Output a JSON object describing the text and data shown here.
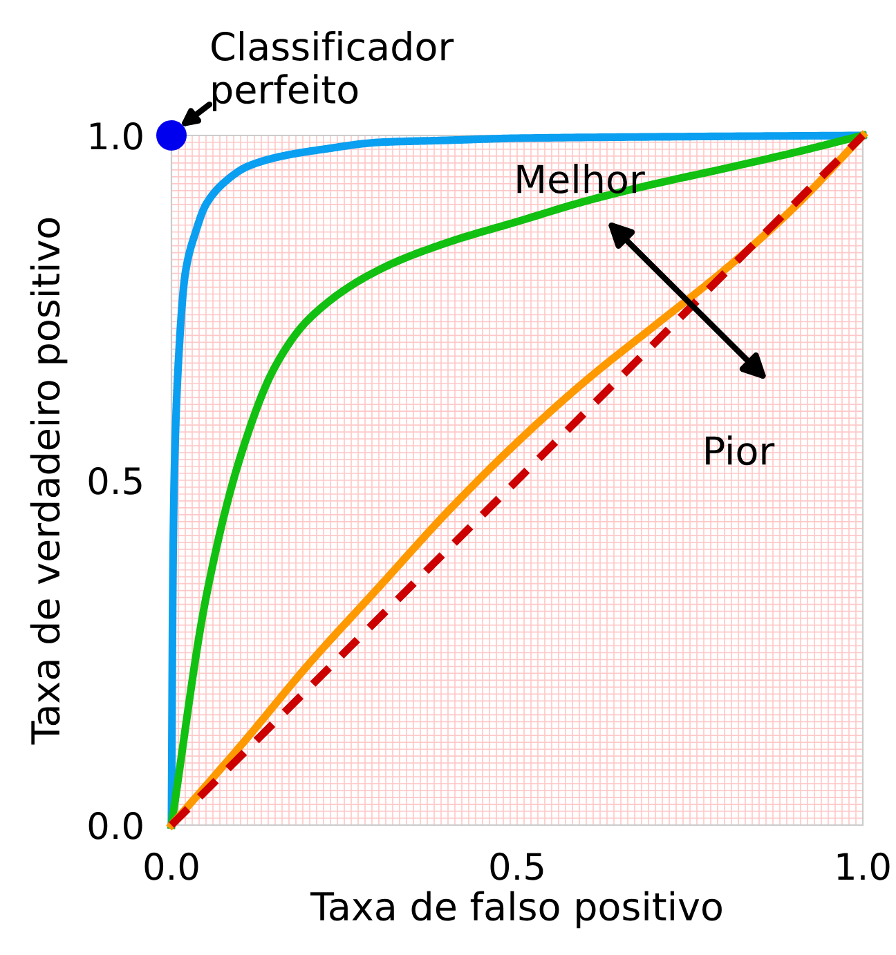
{
  "chart_data": {
    "type": "line",
    "xlabel": "Taxa de falso positivo",
    "ylabel": "Taxa de verdadeiro positivo",
    "xlim": [
      0,
      1
    ],
    "ylim": [
      0,
      1
    ],
    "xticks": [
      {
        "value": 0,
        "label": "0.0"
      },
      0.5,
      {
        "value": 1,
        "label": "1.0"
      }
    ],
    "yticks": [
      {
        "value": 0,
        "label": "0.0"
      },
      0.5,
      {
        "value": 1,
        "label": "1.0"
      }
    ],
    "grid": true,
    "legend": false,
    "series": [
      {
        "color": "#0a9ff0",
        "x": [
          0,
          0.002,
          0.004,
          0.01,
          0.02,
          0.035,
          0.05,
          0.08,
          0.11,
          0.16,
          0.22,
          0.3,
          0.4,
          0.5,
          0.7,
          1
        ],
        "values": [
          0,
          0.35,
          0.5,
          0.67,
          0.8,
          0.86,
          0.9,
          0.935,
          0.955,
          0.97,
          0.98,
          0.99,
          0.993,
          0.996,
          0.998,
          1
        ]
      },
      {
        "color": "#11c011",
        "x": [
          0,
          0.05,
          0.1,
          0.15,
          0.2,
          0.3,
          0.4,
          0.5,
          0.6,
          0.7,
          0.8,
          0.9,
          1
        ],
        "values": [
          0,
          0.33,
          0.535,
          0.665,
          0.735,
          0.805,
          0.845,
          0.875,
          0.905,
          0.93,
          0.952,
          0.975,
          1
        ]
      },
      {
        "color": "#ff9900",
        "x": [
          0,
          0.1,
          0.2,
          0.3,
          0.4,
          0.5,
          0.6,
          0.7,
          0.8,
          0.9,
          1
        ],
        "values": [
          0,
          0.115,
          0.235,
          0.345,
          0.455,
          0.555,
          0.645,
          0.725,
          0.805,
          0.895,
          1
        ]
      },
      {
        "color": "#cc0000",
        "line_style": "dashed",
        "x": [
          0,
          1
        ],
        "values": [
          0,
          1
        ]
      },
      {
        "type": "scatter",
        "color": "#0000ee",
        "x": [
          0
        ],
        "values": [
          1
        ]
      }
    ],
    "annotations": [
      {
        "text": "Classificador\nperfeito",
        "x": 0,
        "y": 1
      },
      "Melhor",
      "Pior"
    ]
  }
}
